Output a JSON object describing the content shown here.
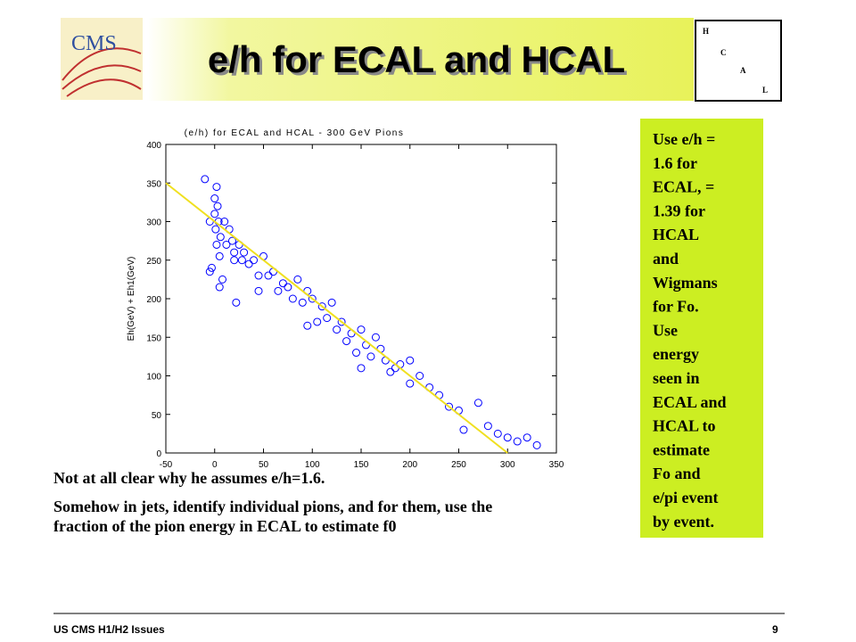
{
  "header": {
    "title": "e/h for ECAL and HCAL",
    "logo": "CMS",
    "corner_letters": [
      "H",
      "C",
      "A",
      "L"
    ]
  },
  "chart_data": {
    "type": "scatter",
    "title": "(e/h) for ECAL and HCAL - 300 GeV Pions",
    "ylabel": "Eh(GeV) + Eh1(GeV)",
    "xlim": [
      -50,
      350
    ],
    "xticks": [
      -50,
      0,
      50,
      100,
      150,
      200,
      250,
      300,
      350
    ],
    "ylim": [
      0,
      400
    ],
    "yticks": [
      0,
      50,
      100,
      150,
      200,
      250,
      300,
      350,
      400
    ],
    "series": [
      {
        "color": "#0000ff",
        "x": [
          -10,
          -5,
          -3,
          0,
          0,
          1,
          2,
          2,
          3,
          4,
          5,
          5,
          6,
          8,
          10,
          12,
          15,
          18,
          20,
          22,
          25,
          28,
          30,
          35,
          40,
          45,
          50,
          55,
          60,
          65,
          70,
          75,
          80,
          85,
          90,
          95,
          100,
          105,
          110,
          115,
          120,
          125,
          130,
          135,
          140,
          145,
          150,
          155,
          160,
          165,
          170,
          175,
          180,
          185,
          190,
          200,
          210,
          220,
          230,
          240,
          250,
          255,
          270,
          280,
          290,
          300,
          310,
          320,
          330,
          20,
          -5,
          45,
          95,
          150,
          200
        ],
        "values": [
          355,
          300,
          240,
          330,
          310,
          290,
          345,
          270,
          320,
          300,
          255,
          215,
          280,
          225,
          300,
          270,
          290,
          275,
          260,
          195,
          270,
          250,
          260,
          245,
          250,
          230,
          255,
          230,
          235,
          210,
          220,
          215,
          200,
          225,
          195,
          210,
          200,
          170,
          190,
          175,
          195,
          160,
          170,
          145,
          155,
          130,
          160,
          140,
          125,
          150,
          135,
          120,
          105,
          110,
          115,
          90,
          100,
          85,
          75,
          60,
          55,
          30,
          65,
          35,
          25,
          20,
          15,
          20,
          10,
          250,
          235,
          210,
          165,
          110,
          120
        ]
      },
      {
        "color": "#f0e020",
        "x": [
          -50,
          300
        ],
        "values": [
          350,
          0
        ]
      }
    ]
  },
  "side_note": [
    "Use e/h =",
    "1.6 for",
    "ECAL, =",
    "1.39 for",
    "HCAL",
    "and",
    "Wigmans",
    "for Fo.",
    "Use",
    "energy",
    "seen in",
    "ECAL and",
    "HCAL to",
    "estimate",
    "Fo and",
    "e/pi event",
    "by event."
  ],
  "body": [
    "Not at all clear why he assumes e/h=1.6.",
    "Somehow in jets, identify individual pions, and for them, use the fraction of the pion energy in ECAL to estimate f0"
  ],
  "footer": {
    "left": "US CMS H1/H2 Issues",
    "page": "9"
  }
}
